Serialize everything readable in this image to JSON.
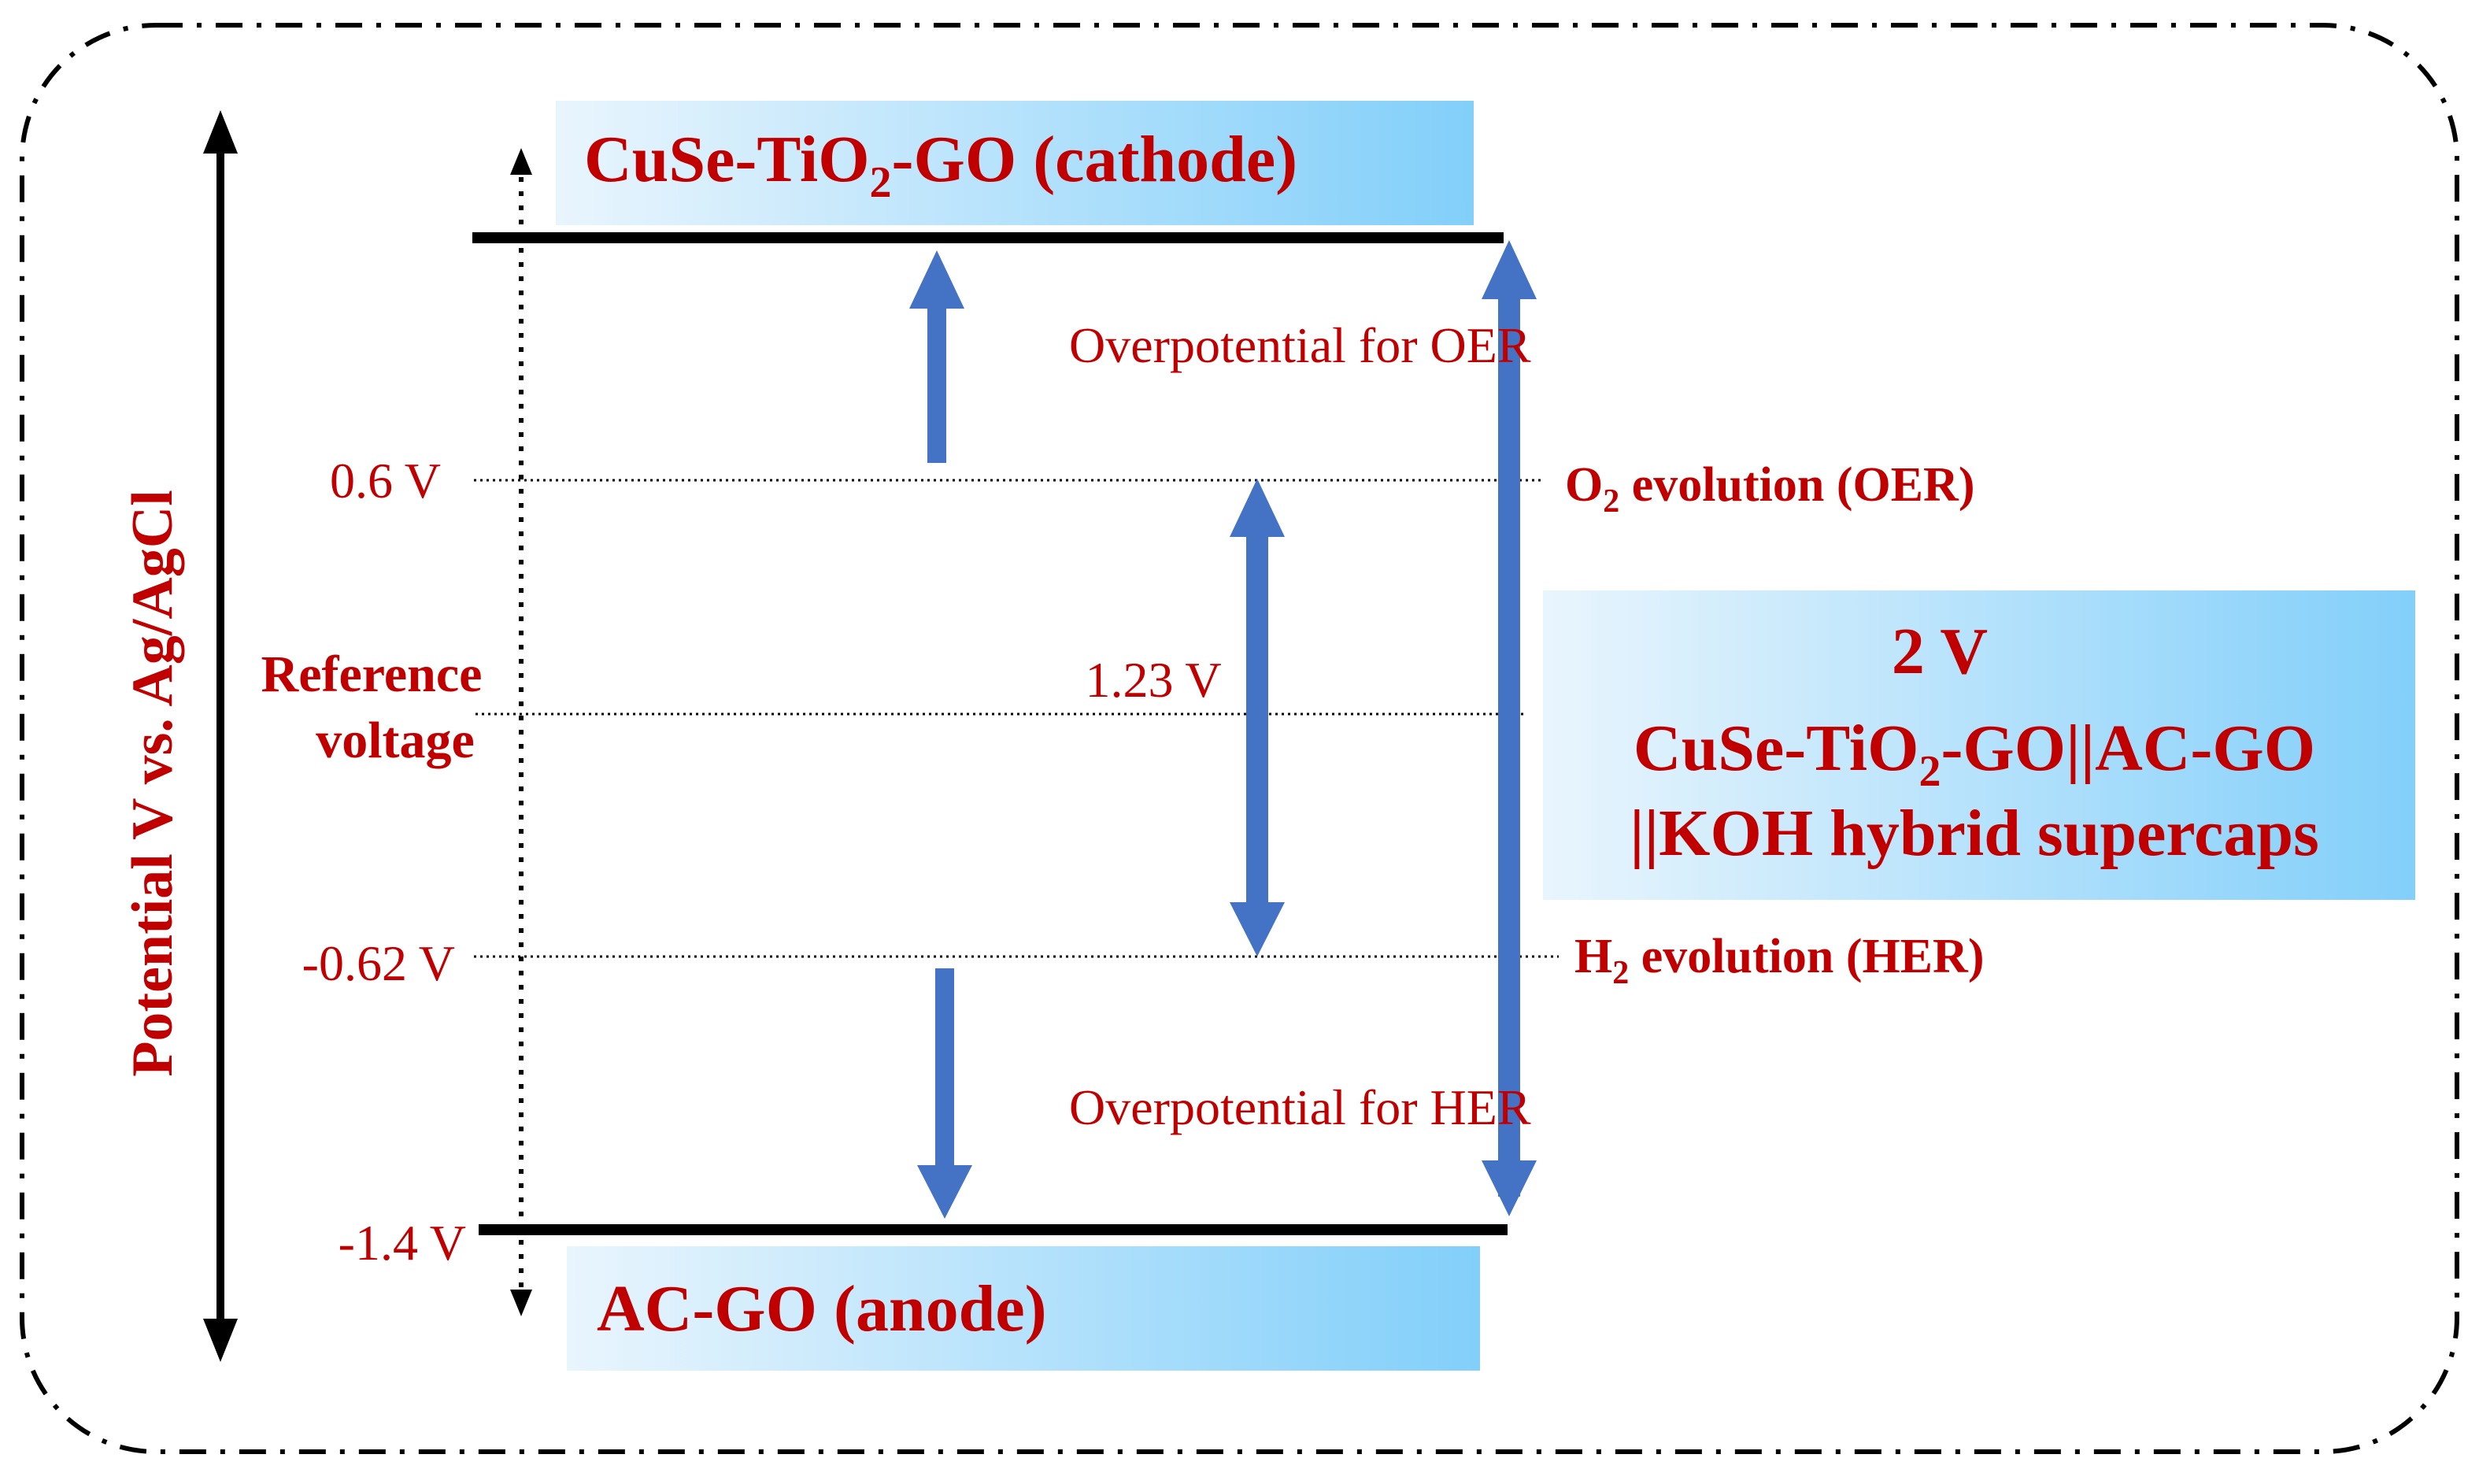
{
  "colors": {
    "label_red": "#c00000",
    "arrow_blue": "#4472c4",
    "line_black": "#000000",
    "box_gradient_start": "#e9f5fd",
    "box_gradient_end": "#82cffa"
  },
  "axis": {
    "label": "Potential V vs. Ag/AgCl"
  },
  "cathode": {
    "name_pre": "CuSe-TiO",
    "name_sub": "2",
    "name_post": "-GO  (cathode)"
  },
  "anode": {
    "label": "AC-GO (anode)"
  },
  "levels": {
    "cathode_top": "",
    "oer": "0.6 V",
    "her": "-0.62 V",
    "anode": "-1.4 V"
  },
  "reference": {
    "line1": "Reference",
    "line2": "voltage"
  },
  "window_label": "1.23 V",
  "overpotential": {
    "oer": "Overpotential for OER",
    "her": "Overpotential for HER"
  },
  "evolution": {
    "oer_pre": "O",
    "oer_sub": "2",
    "oer_post": " evolution (OER)",
    "her_pre": "H",
    "her_sub": "2",
    "her_post": " evolution (HER)"
  },
  "device": {
    "voltage": "2 V",
    "line2_pre": "CuSe-TiO",
    "line2_sub": "2",
    "line2_post": "-GO||AC-GO",
    "line3": "||KOH hybrid supercaps"
  }
}
